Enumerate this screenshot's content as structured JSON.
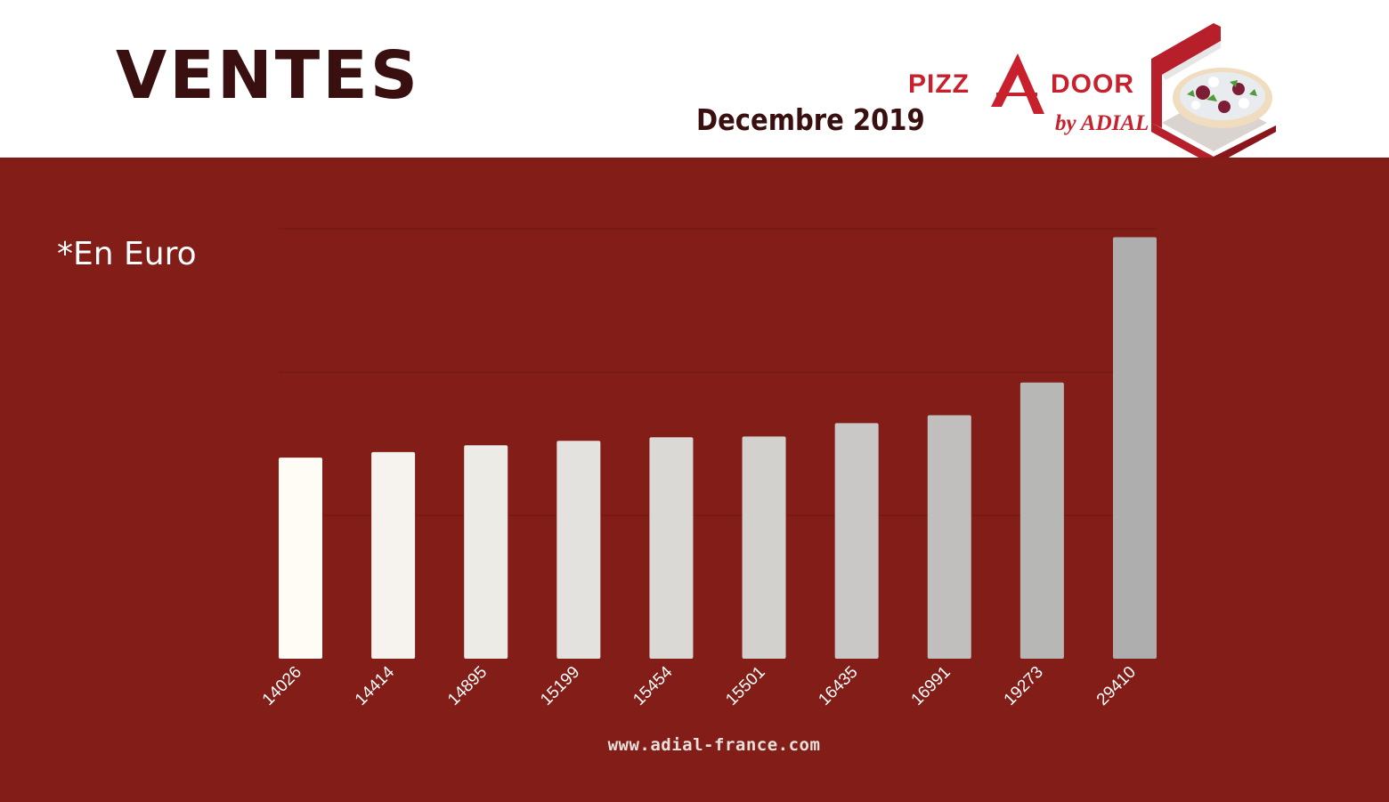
{
  "header": {
    "title": "VENTES",
    "subtitle": "Decembre 2019"
  },
  "logo": {
    "word_main": "PIZZADOOR",
    "word_sub": "by ADIAL",
    "icon": "pizza-box-icon"
  },
  "unit_note": "*En Euro",
  "footer": {
    "url": "www.adial-france.com"
  },
  "colors": {
    "panel": "#821d17",
    "title": "#3a0f0f",
    "logo_red": "#c8202c",
    "bar_start": "#fffcf6",
    "bar_end": "#aeaeae"
  },
  "chart_data": {
    "type": "bar",
    "categories": [
      "14026",
      "14414",
      "14895",
      "15199",
      "15454",
      "15501",
      "16435",
      "16991",
      "19273",
      "29410"
    ],
    "values": [
      14026,
      14414,
      14895,
      15199,
      15454,
      15501,
      16435,
      16991,
      19273,
      29410
    ],
    "ylim": [
      0,
      30000
    ],
    "grid": true,
    "legend": "none"
  }
}
